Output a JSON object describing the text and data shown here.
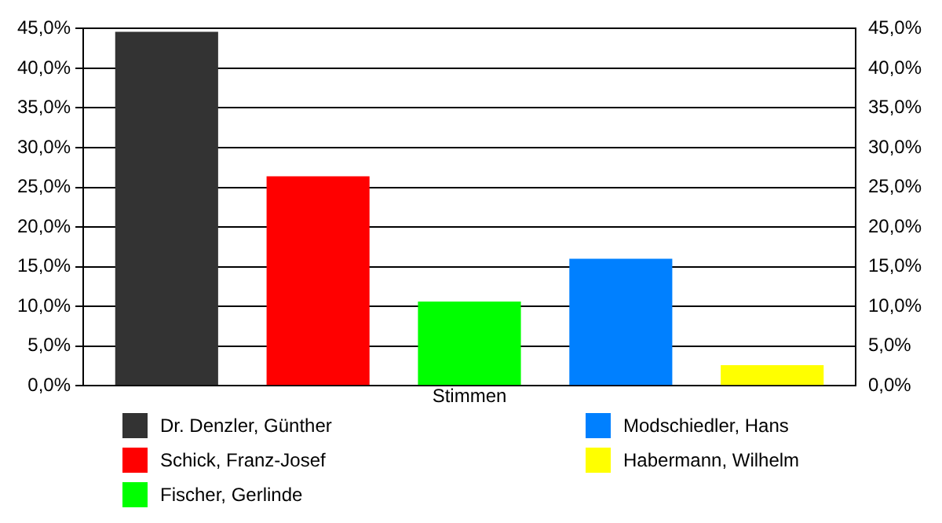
{
  "chart_data": {
    "type": "bar",
    "categories": [
      "Stimmen"
    ],
    "series": [
      {
        "name": "Dr. Denzler, Günther",
        "color": "#333333",
        "values": [
          44.6
        ]
      },
      {
        "name": "Schick, Franz-Josef",
        "color": "#ff0000",
        "values": [
          26.4
        ]
      },
      {
        "name": "Fischer, Gerlinde",
        "color": "#00ff00",
        "values": [
          10.6
        ]
      },
      {
        "name": "Modschiedler, Hans",
        "color": "#0080ff",
        "values": [
          16.0
        ]
      },
      {
        "name": "Habermann, Wilhelm",
        "color": "#ffff00",
        "values": [
          2.6
        ]
      }
    ],
    "ylim": [
      0,
      45
    ],
    "yticks": [
      {
        "value": 0,
        "label": "0,0%"
      },
      {
        "value": 5,
        "label": "5,0%"
      },
      {
        "value": 10,
        "label": "10,0%"
      },
      {
        "value": 15,
        "label": "15,0%"
      },
      {
        "value": 20,
        "label": "20,0%"
      },
      {
        "value": 25,
        "label": "25,0%"
      },
      {
        "value": 30,
        "label": "30,0%"
      },
      {
        "value": 35,
        "label": "35,0%"
      },
      {
        "value": 40,
        "label": "40,0%"
      },
      {
        "value": 45,
        "label": "45,0%"
      }
    ],
    "grid": "y",
    "legend": "bottom"
  }
}
